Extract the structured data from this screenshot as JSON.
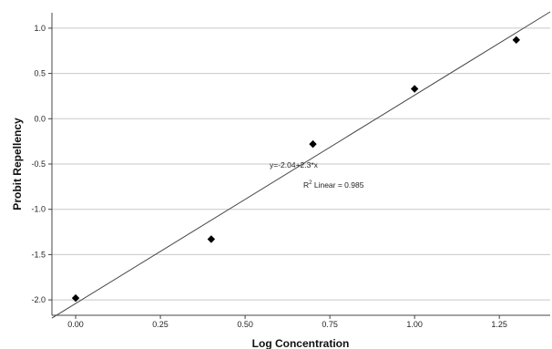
{
  "chart_data": {
    "type": "scatter",
    "title": "",
    "xlabel": "Log Concentration",
    "ylabel": "Probit Repellency",
    "xlim": [
      -0.07,
      1.4
    ],
    "ylim": [
      -2.17,
      1.17
    ],
    "x_ticks": [
      0.0,
      0.25,
      0.5,
      0.75,
      1.0,
      1.25
    ],
    "x_tick_labels": [
      "0.00",
      "0.25",
      "0.50",
      "0.75",
      "1.00",
      "1.25"
    ],
    "y_ticks": [
      -2.0,
      -1.5,
      -1.0,
      -0.5,
      0.0,
      0.5,
      1.0
    ],
    "y_tick_labels": [
      "-2.0",
      "-1.5",
      "-1.0",
      "-0.5",
      "0.0",
      "0.5",
      "1.0"
    ],
    "grid": "horizontal",
    "marker": "diamond",
    "points": [
      {
        "x": 0.0,
        "y": -1.98
      },
      {
        "x": 0.4,
        "y": -1.33
      },
      {
        "x": 0.7,
        "y": -0.28
      },
      {
        "x": 1.0,
        "y": 0.33
      },
      {
        "x": 1.3,
        "y": 0.87
      }
    ],
    "fit_line": {
      "intercept": -2.04,
      "slope": 2.3,
      "x_range": [
        -0.07,
        1.4
      ]
    },
    "annotations": {
      "equation": "y=-2.04+2.3*x",
      "r2_prefix": "R",
      "r2_sup": "2",
      "r2_rest": " Linear = 0.985"
    }
  }
}
